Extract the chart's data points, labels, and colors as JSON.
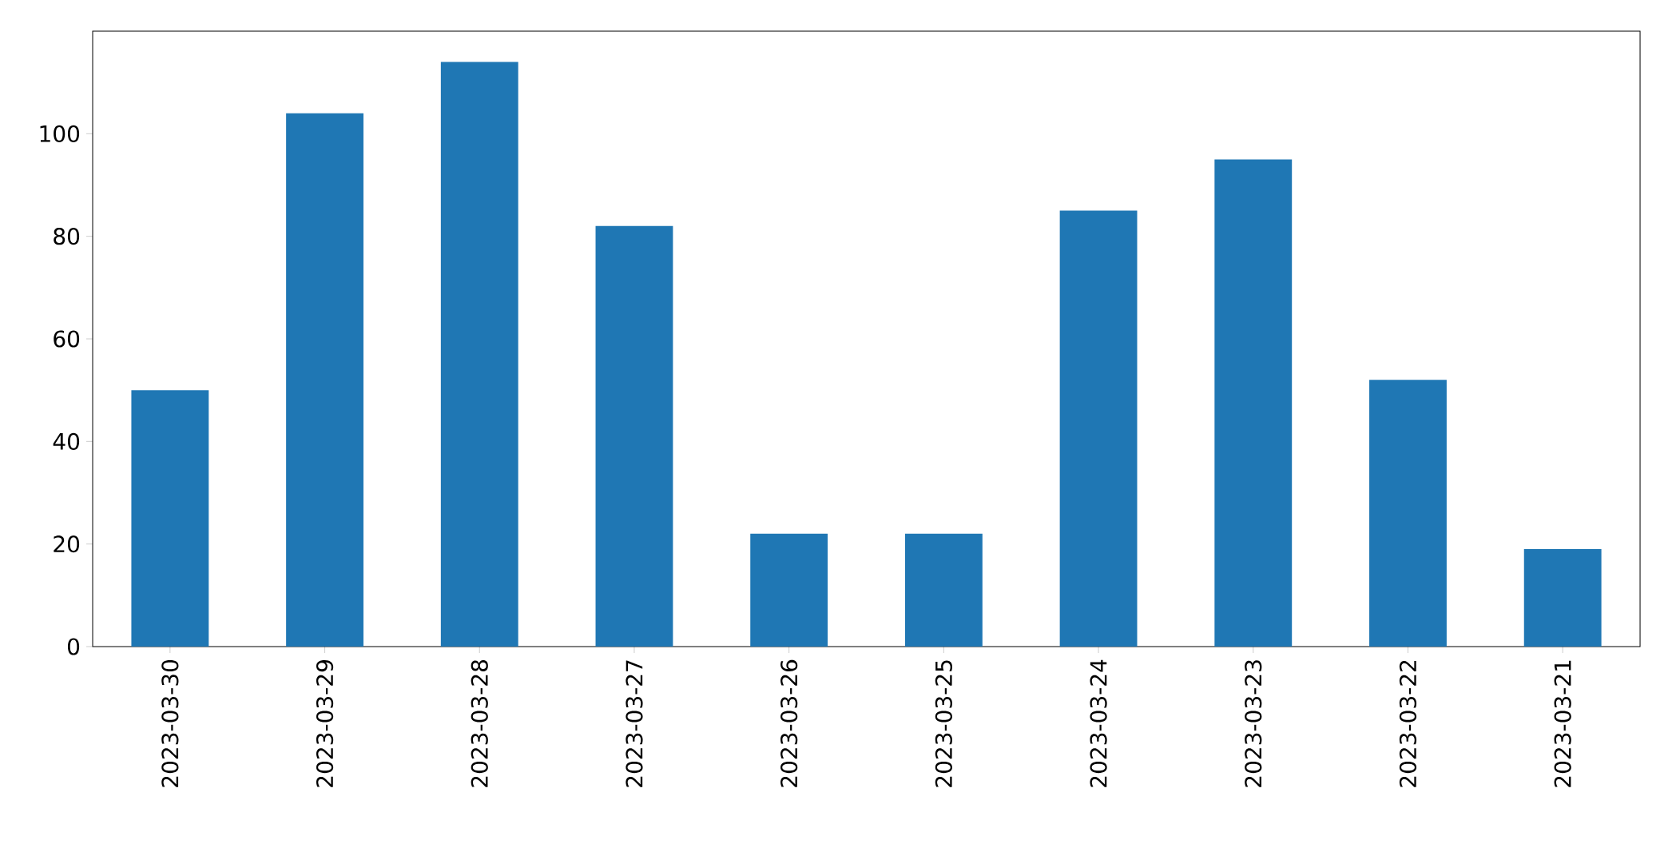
{
  "chart_data": {
    "type": "bar",
    "categories": [
      "2023-03-30",
      "2023-03-29",
      "2023-03-28",
      "2023-03-27",
      "2023-03-26",
      "2023-03-25",
      "2023-03-24",
      "2023-03-23",
      "2023-03-22",
      "2023-03-21"
    ],
    "values": [
      50,
      104,
      114,
      82,
      22,
      22,
      85,
      95,
      52,
      19
    ],
    "color": "#1f77b4",
    "ylim": [
      0,
      120
    ],
    "yticks": [
      0,
      20,
      40,
      60,
      80,
      100
    ]
  }
}
